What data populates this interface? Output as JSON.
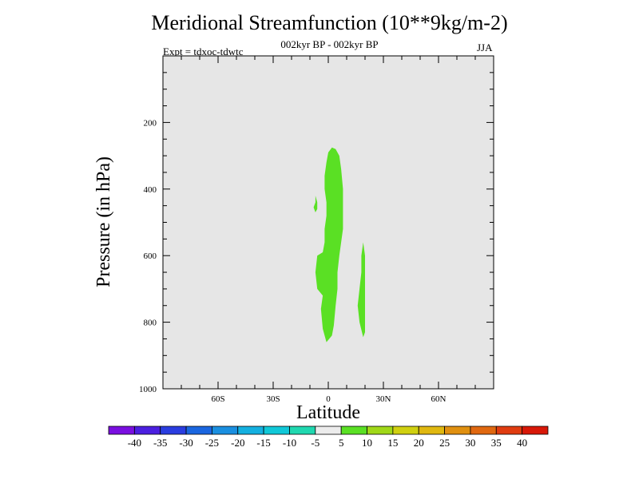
{
  "chart_data": {
    "type": "contour",
    "title": "Meridional Streamfunction (10**9kg/m-2)",
    "period_label": "002kyr BP - 002kyr BP",
    "experiment_label": "Expt = tdxoc-tdwtc",
    "season_label": "JJA",
    "xlabel": "Latitude",
    "ylabel": "Pressure (in hPa)",
    "xlim": [
      -90,
      90
    ],
    "ylim": [
      1000,
      0
    ],
    "x_ticks": [
      {
        "value": -60,
        "label": "60S"
      },
      {
        "value": -30,
        "label": "30S"
      },
      {
        "value": 0,
        "label": "0"
      },
      {
        "value": 30,
        "label": "30N"
      },
      {
        "value": 60,
        "label": "60N"
      }
    ],
    "y_ticks": [
      {
        "value": 200,
        "label": "200"
      },
      {
        "value": 400,
        "label": "400"
      },
      {
        "value": 600,
        "label": "600"
      },
      {
        "value": 800,
        "label": "800"
      },
      {
        "value": 1000,
        "label": "1000"
      }
    ],
    "colorbar": {
      "labels": [
        "-40",
        "-35",
        "-30",
        "-25",
        "-20",
        "-15",
        "-10",
        "-5",
        "5",
        "10",
        "15",
        "20",
        "25",
        "30",
        "35",
        "40"
      ],
      "colors": [
        "#7a0fe0",
        "#4b1fe0",
        "#2a3de0",
        "#1a66e0",
        "#1a8fe0",
        "#14b0e0",
        "#10c8d8",
        "#20d8b0",
        "#ececec",
        "#5ae024",
        "#a0d818",
        "#d0d010",
        "#e0b810",
        "#e09010",
        "#e06810",
        "#e03c10",
        "#d81808"
      ]
    },
    "background_color": "#e6e6e6",
    "regions": [
      {
        "name": "main-positive-cell",
        "level": "5 to 10",
        "color": "#5ae024",
        "points": [
          [
            -1,
            860
          ],
          [
            -3,
            820
          ],
          [
            -4,
            760
          ],
          [
            -3,
            720
          ],
          [
            -6,
            700
          ],
          [
            -7,
            650
          ],
          [
            -6,
            600
          ],
          [
            -3,
            590
          ],
          [
            -2,
            560
          ],
          [
            -2,
            520
          ],
          [
            -1,
            480
          ],
          [
            -1,
            440
          ],
          [
            -2,
            400
          ],
          [
            -2,
            360
          ],
          [
            -1,
            320
          ],
          [
            0,
            290
          ],
          [
            2,
            275
          ],
          [
            4,
            280
          ],
          [
            6,
            300
          ],
          [
            7,
            340
          ],
          [
            8,
            400
          ],
          [
            8,
            460
          ],
          [
            8,
            520
          ],
          [
            7,
            560
          ],
          [
            6,
            600
          ],
          [
            5,
            650
          ],
          [
            5,
            700
          ],
          [
            4,
            750
          ],
          [
            3,
            810
          ],
          [
            2,
            840
          ]
        ]
      },
      {
        "name": "small-blob-left",
        "level": "5 to 10",
        "color": "#5ae024",
        "points": [
          [
            -7,
            420
          ],
          [
            -6,
            440
          ],
          [
            -6,
            460
          ],
          [
            -7,
            470
          ],
          [
            -8,
            455
          ],
          [
            -7,
            440
          ]
        ]
      },
      {
        "name": "right-cell-30N",
        "level": "5 to 10",
        "color": "#5ae024",
        "points": [
          [
            19,
            560
          ],
          [
            20,
            600
          ],
          [
            20,
            660
          ],
          [
            20,
            720
          ],
          [
            20,
            780
          ],
          [
            20,
            830
          ],
          [
            19,
            845
          ],
          [
            17,
            800
          ],
          [
            16,
            750
          ],
          [
            17,
            700
          ],
          [
            18,
            650
          ],
          [
            18,
            600
          ]
        ]
      }
    ]
  }
}
